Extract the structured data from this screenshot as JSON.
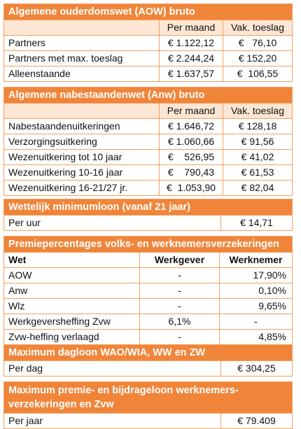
{
  "aow": {
    "title": "Algemene ouderdomswet (AOW) bruto",
    "headers": [
      "",
      "Per maand",
      "Vak. toeslag"
    ],
    "rows": [
      [
        "Partners",
        "€ 1.122,12",
        "€   76,10"
      ],
      [
        "Partners met max. toeslag",
        "€ 2.244,24",
        "€ 152,20"
      ],
      [
        "Alleenstaande",
        "€ 1.637,57",
        "€  106,55"
      ]
    ]
  },
  "anw": {
    "title": "Algemene nabestaandenwet (Anw) bruto",
    "headers": [
      "",
      "Per maand",
      "Vak. toeslag"
    ],
    "rows": [
      [
        "Nabestaandenuitkeringen",
        "€ 1.646,72",
        "€ 128,18"
      ],
      [
        "Verzorgingsuitkering",
        "€ 1.060,66",
        "€ 91,56"
      ],
      [
        "Wezenuitkering tot 10 jaar",
        "€    526,95",
        "€ 41,02"
      ],
      [
        "Wezenuitkering 10-16 jaar",
        "€    790,43",
        "€ 61,53"
      ],
      [
        "Wezenuitkering 16-21/27 jr.",
        "€  1.053,90",
        "€ 82,04"
      ]
    ]
  },
  "minloon": {
    "title": "Wettelijk minimumloon (vanaf 21 jaar)",
    "rows": [
      [
        "Per uur",
        "€ 14,71"
      ]
    ]
  },
  "premie": {
    "title": "Premiepercentages volks- en werknemersverzekeringen",
    "headers": [
      "Wet",
      "Werkgever",
      "Werknemer"
    ],
    "rows": [
      [
        "AOW",
        "-",
        "17,90%"
      ],
      [
        "Anw",
        "-",
        "0,10%"
      ],
      [
        "Wlz",
        "-",
        "9,65%"
      ],
      [
        "Werkgeversheffing Zvw",
        "6,1%",
        "-"
      ],
      [
        "Zvw-heffing verlaagd",
        "-",
        "4,85%"
      ]
    ]
  },
  "dagloon": {
    "title": "Maximum dagloon WAO/WIA, WW en ZW",
    "rows": [
      [
        "Per dag",
        "€ 304,25"
      ]
    ]
  },
  "premieloon": {
    "title": "Maximum premie- en bijdrageloon werknemers-verzekeringen en Zvw",
    "rows": [
      [
        "Per jaar",
        "€ 79.409"
      ]
    ]
  }
}
